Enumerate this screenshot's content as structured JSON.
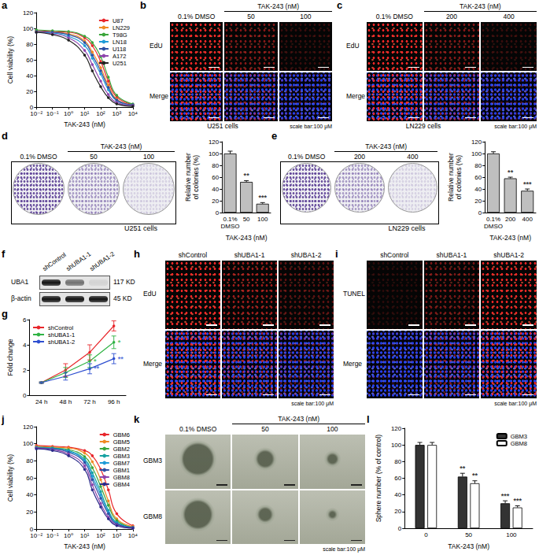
{
  "chart_data": [
    {
      "title": "a",
      "type": "line",
      "log": "x",
      "grid": false,
      "legend": "upper right",
      "marker": "circle",
      "xlabel": "TAK-243 (nM)",
      "ylabel": "Cell viability (%)",
      "x": [
        0.01,
        0.1,
        1,
        10,
        30,
        100,
        300,
        1000,
        10000
      ],
      "xlim": [
        0.01,
        10000
      ],
      "xticks": [
        {
          "value": 0.01,
          "label": "10⁻²"
        },
        {
          "value": 0.1,
          "label": "10⁻¹"
        },
        {
          "value": 1,
          "label": "10⁰"
        },
        {
          "value": 10,
          "label": "10¹"
        },
        {
          "value": 100,
          "label": "10²"
        },
        {
          "value": 1000,
          "label": "10³"
        },
        {
          "value": 10000,
          "label": "10⁴"
        }
      ],
      "ylim": [
        0,
        120
      ],
      "yticks": [
        0,
        20,
        40,
        60,
        80,
        100,
        120
      ],
      "series": [
        {
          "name": "U87",
          "color": "#e8262b",
          "values": [
            97,
            96,
            95,
            88,
            78,
            58,
            33,
            13,
            3
          ]
        },
        {
          "name": "LN229",
          "color": "#f08a24",
          "values": [
            96,
            95,
            93,
            84,
            70,
            50,
            28,
            10,
            3
          ]
        },
        {
          "name": "T98G",
          "color": "#3aa53a",
          "values": [
            98,
            97,
            96,
            90,
            82,
            64,
            38,
            15,
            4
          ]
        },
        {
          "name": "LN18",
          "color": "#1f9bd7",
          "values": [
            95,
            94,
            90,
            78,
            62,
            42,
            22,
            8,
            2
          ]
        },
        {
          "name": "U118",
          "color": "#2e4fa3",
          "values": [
            96,
            95,
            92,
            82,
            66,
            46,
            25,
            9,
            3
          ]
        },
        {
          "name": "A172",
          "color": "#8e44ad",
          "values": [
            95,
            93,
            88,
            72,
            54,
            33,
            16,
            6,
            2
          ]
        },
        {
          "name": "U251",
          "color": "#222222",
          "values": [
            95,
            92,
            85,
            66,
            46,
            26,
            12,
            4,
            1
          ]
        }
      ]
    },
    {
      "title": "d",
      "type": "bar",
      "grid": false,
      "xlabel": "TAK-243 (nM)",
      "ylabel": "Relative number\nof colonies (%)",
      "categories": [
        "0.1%\nDMSO",
        "50",
        "100"
      ],
      "values": [
        100,
        52,
        15
      ],
      "errors": [
        4,
        2,
        2
      ],
      "color": "#bfbfbf",
      "ylim": [
        0,
        120
      ],
      "yticks": [
        0,
        20,
        40,
        60,
        80,
        100,
        120
      ],
      "annotations": [
        {
          "category": "50",
          "text": "**"
        },
        {
          "category": "100",
          "text": "***"
        }
      ]
    },
    {
      "title": "e",
      "type": "bar",
      "grid": false,
      "xlabel": "TAK-243 (nM)",
      "ylabel": "Relative number\nof colonies (%)",
      "categories": [
        "0.1%\nDMSO",
        "200",
        "400"
      ],
      "values": [
        100,
        58,
        37
      ],
      "errors": [
        3,
        2,
        3
      ],
      "color": "#bfbfbf",
      "ylim": [
        0,
        120
      ],
      "yticks": [
        0,
        20,
        40,
        60,
        80,
        100,
        120
      ],
      "annotations": [
        {
          "category": "200",
          "text": "**"
        },
        {
          "category": "400",
          "text": "***"
        }
      ]
    },
    {
      "title": "g",
      "type": "line",
      "grid": false,
      "legend": "upper left",
      "marker": "circle",
      "ylabel": "Fold change",
      "categories": [
        "24 h",
        "48 h",
        "72 h",
        "96 h"
      ],
      "ylim": [
        0,
        6
      ],
      "yticks": [
        0,
        2,
        4,
        6
      ],
      "series": [
        {
          "name": "shControl",
          "color": "#e8262b",
          "values": [
            1,
            2,
            3.4,
            5.5
          ],
          "errors": [
            0.05,
            0.5,
            0.6,
            0.4
          ]
        },
        {
          "name": "shUBA1-1",
          "color": "#2fb344",
          "values": [
            1,
            1.8,
            2.7,
            4.2
          ],
          "errors": [
            0.05,
            0.4,
            0.5,
            0.5
          ]
        },
        {
          "name": "shUBA1-2",
          "color": "#2e4fd0",
          "values": [
            1,
            1.5,
            2.1,
            2.9
          ],
          "errors": [
            0.05,
            0.3,
            0.4,
            0.4
          ]
        }
      ],
      "annotations": [
        {
          "category": "72 h",
          "series": "shUBA1-1",
          "text": "*"
        },
        {
          "category": "72 h",
          "series": "shUBA1-2",
          "text": "**"
        },
        {
          "category": "96 h",
          "series": "shUBA1-1",
          "text": "*"
        },
        {
          "category": "96 h",
          "series": "shUBA1-2",
          "text": "**"
        }
      ]
    },
    {
      "title": "j",
      "type": "line",
      "log": "x",
      "grid": false,
      "legend": "upper right",
      "marker": "circle",
      "xlabel": "TAK-243 (nM)",
      "ylabel": "Cell viability (%)",
      "x": [
        0.01,
        0.1,
        1,
        10,
        30,
        100,
        300,
        1000,
        10000
      ],
      "xlim": [
        0.01,
        10000
      ],
      "xticks": [
        {
          "value": 0.01,
          "label": "10⁻²"
        },
        {
          "value": 0.1,
          "label": "10⁻¹"
        },
        {
          "value": 1,
          "label": "10⁰"
        },
        {
          "value": 10,
          "label": "10¹"
        },
        {
          "value": 100,
          "label": "10²"
        },
        {
          "value": 1000,
          "label": "10³"
        },
        {
          "value": 10000,
          "label": "10⁴"
        }
      ],
      "ylim": [
        0,
        120
      ],
      "yticks": [
        0,
        20,
        40,
        60,
        80,
        100,
        120
      ],
      "series": [
        {
          "name": "GBM6",
          "color": "#e8262b",
          "values": [
            98,
            97,
            96,
            92,
            86,
            70,
            46,
            18,
            4
          ]
        },
        {
          "name": "GBM5",
          "color": "#f08a24",
          "values": [
            97,
            96,
            95,
            89,
            79,
            58,
            33,
            12,
            3
          ]
        },
        {
          "name": "GBM2",
          "color": "#3aa53a",
          "values": [
            96,
            95,
            93,
            85,
            72,
            50,
            28,
            10,
            2
          ]
        },
        {
          "name": "GBM3",
          "color": "#17a2a2",
          "values": [
            96,
            95,
            92,
            82,
            66,
            44,
            22,
            8,
            2
          ]
        },
        {
          "name": "GBM7",
          "color": "#1f9bd7",
          "values": [
            95,
            94,
            91,
            80,
            62,
            40,
            20,
            7,
            2
          ]
        },
        {
          "name": "GBM1",
          "color": "#2e4fa3",
          "values": [
            95,
            94,
            90,
            78,
            58,
            36,
            18,
            6,
            2
          ]
        },
        {
          "name": "GBM8",
          "color": "#8e44ad",
          "values": [
            95,
            93,
            88,
            74,
            52,
            30,
            14,
            5,
            1
          ]
        },
        {
          "name": "GBM4",
          "color": "#2b2b8a",
          "values": [
            94,
            92,
            86,
            70,
            46,
            26,
            12,
            4,
            1
          ]
        }
      ]
    },
    {
      "title": "l",
      "type": "bar",
      "grid": false,
      "legend": "upper right",
      "xlabel": "TAK-243 (nM)",
      "ylabel": "Sphere number (% of control)",
      "categories": [
        "0",
        "50",
        "100"
      ],
      "ylim": [
        0,
        120
      ],
      "yticks": [
        0,
        20,
        40,
        60,
        80,
        100,
        120
      ],
      "series": [
        {
          "name": "GBM3",
          "color": "#333333",
          "values": [
            100,
            62,
            30
          ],
          "errors": [
            3,
            4,
            3
          ]
        },
        {
          "name": "GBM8",
          "color": "#ffffff",
          "values": [
            100,
            54,
            25
          ],
          "errors": [
            3,
            3,
            2
          ]
        }
      ],
      "annotations": [
        {
          "category": "50",
          "series": "GBM3",
          "text": "**"
        },
        {
          "category": "100",
          "series": "GBM3",
          "text": "***"
        },
        {
          "category": "50",
          "series": "GBM8",
          "text": "**"
        },
        {
          "category": "100",
          "series": "GBM8",
          "text": "***"
        }
      ]
    }
  ],
  "images": {
    "b": {
      "title": "b",
      "columns": [
        "0.1% DMSO",
        "50",
        "100"
      ],
      "group_label": "TAK-243 (nM)",
      "rows": [
        "EdU",
        "Merge"
      ],
      "caption": "U251 cells",
      "scale_note": "scale bar:100 μM"
    },
    "c": {
      "title": "c",
      "columns": [
        "0.1% DMSO",
        "200",
        "400"
      ],
      "group_label": "TAK-243 (nM)",
      "rows": [
        "EdU",
        "Merge"
      ],
      "caption": "LN229 cells",
      "scale_note": "scale bar:100 μM"
    },
    "d": {
      "plates": [
        "0.1% DMSO",
        "50",
        "100"
      ],
      "group_label": "TAK-243 (nM)",
      "caption": "U251 cells"
    },
    "e": {
      "plates": [
        "0.1% DMSO",
        "200",
        "400"
      ],
      "group_label": "TAK-243 (nM)",
      "caption": "LN229 cells"
    },
    "f": {
      "title": "f",
      "columns": [
        "shControl",
        "shUBA1-1",
        "shUBA1-2"
      ],
      "bands": [
        {
          "label": "UBA1",
          "size": "117 KD"
        },
        {
          "label": "β-actin",
          "size": "45 KD"
        }
      ]
    },
    "h": {
      "title": "h",
      "columns": [
        "shControl",
        "shUBA1-1",
        "shUBA1-2"
      ],
      "rows": [
        "EdU",
        "Merge"
      ],
      "scale_note": "scale bar:100 μM"
    },
    "i": {
      "title": "i",
      "columns": [
        "shControl",
        "shUBA1-1",
        "shUBA1-2"
      ],
      "rows": [
        "TUNEL",
        "Merge"
      ],
      "scale_note": "scale bar:100 μM"
    },
    "k": {
      "title": "k",
      "columns": [
        "0.1% DMSO",
        "50",
        "100"
      ],
      "group_label": "TAK-243 (nM)",
      "rows": [
        "GBM3",
        "GBM8"
      ],
      "scale_note": "scale bar:100 μM"
    }
  }
}
